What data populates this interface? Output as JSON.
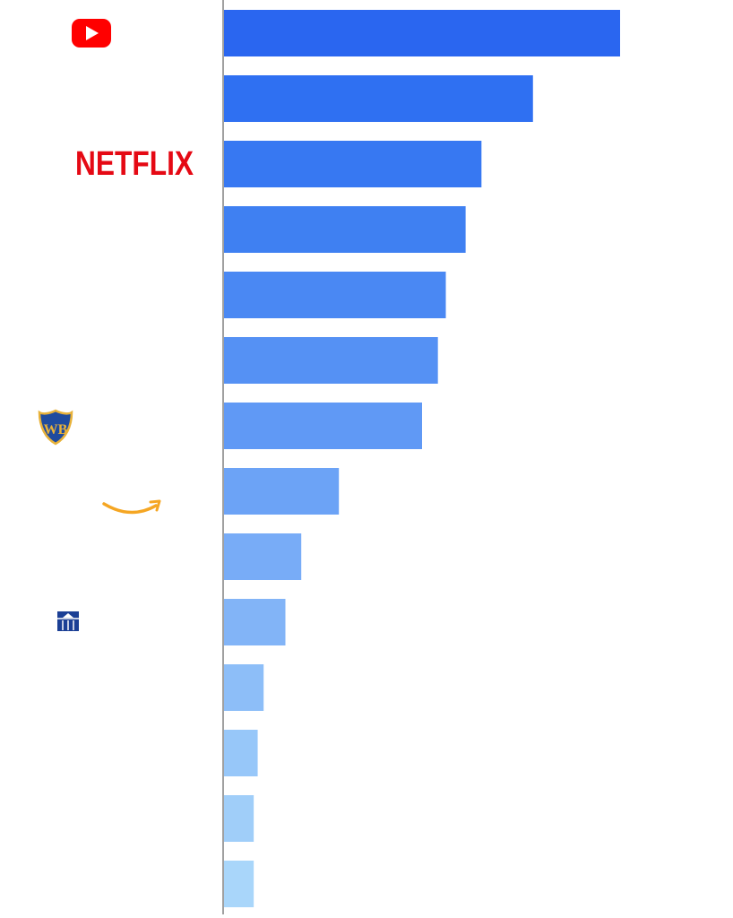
{
  "chart_data": {
    "type": "bar",
    "orientation": "horizontal",
    "title": "",
    "xlabel": "",
    "ylabel": "",
    "grid": false,
    "legend": "none",
    "xlim": [
      0,
      100
    ],
    "values": [
      100,
      78,
      65,
      61,
      56,
      54,
      50,
      29,
      19.5,
      15.5,
      10,
      8.5,
      7.5,
      7.5
    ],
    "bar_colors": [
      "#2a66f0",
      "#2f70f2",
      "#3778f2",
      "#3f80f2",
      "#4a88f3",
      "#5591f4",
      "#6099f5",
      "#6ca3f6",
      "#78acf7",
      "#82b4f7",
      "#8dbef8",
      "#97c7f9",
      "#a0cef9",
      "#a9d6fa"
    ],
    "row_logos": [
      "youtube-logo",
      "",
      "netflix-logo",
      "",
      "",
      "",
      "warner-bros-logo",
      "amazon-logo",
      "",
      "paramount-logo",
      "",
      "",
      "",
      ""
    ],
    "logo_text": {
      "netflix": "NETFLIX",
      "warner_bros": "WB"
    },
    "colors": {
      "youtube_red": "#ff0000",
      "netflix_red": "#e50914",
      "warner_blue": "#1f4b9e",
      "warner_gold": "#e8b23a",
      "amazon_orange": "#f5a623",
      "paramount_blue": "#1b3f95",
      "axis_line": "#a0a0a0"
    }
  }
}
